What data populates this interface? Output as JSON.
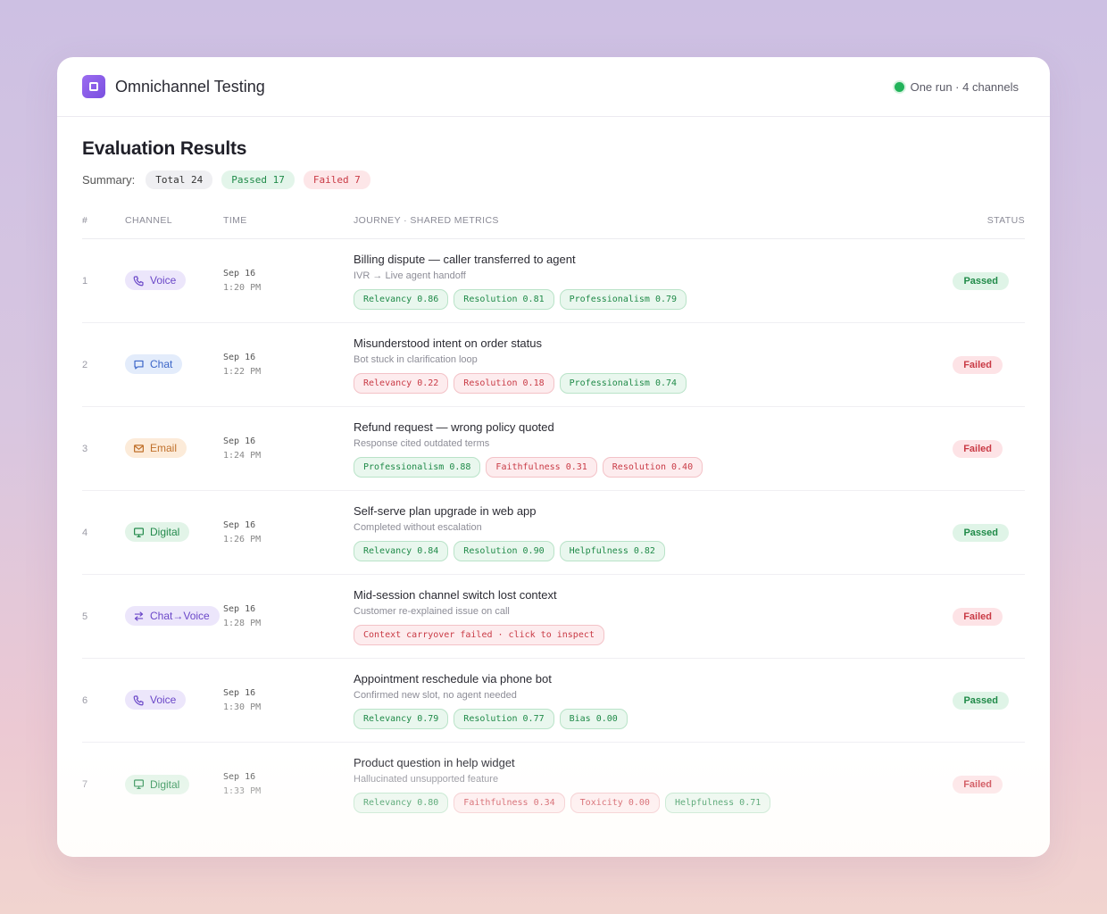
{
  "app": {
    "title": "Omnichannel Testing",
    "run_info": "One run · 4 channels"
  },
  "page": {
    "title": "Evaluation Results"
  },
  "summary": {
    "label": "Summary:",
    "total": "Total 24",
    "passed": "Passed 17",
    "failed": "Failed 7"
  },
  "columns": {
    "num": "#",
    "channel": "CHANNEL",
    "time": "TIME",
    "journey": "JOURNEY · SHARED METRICS",
    "status": "STATUS"
  },
  "colors": {
    "voice": {
      "bg": "#ece6fb",
      "fg": "#6b48c8"
    },
    "chat": {
      "bg": "#e3ecfb",
      "fg": "#3c66c8"
    },
    "email": {
      "bg": "#fcebd9",
      "fg": "#c0702a"
    },
    "digital": {
      "bg": "#e2f4e8",
      "fg": "#238a4c"
    },
    "switch": {
      "bg": "#ece6fb",
      "fg": "#6b48c8"
    }
  },
  "rows": [
    {
      "num": "1",
      "channel": "Voice",
      "channel_key": "voice",
      "icon": "phone-icon",
      "date": "Sep 16",
      "time": "1:20 PM",
      "title": "Billing dispute — caller transferred to agent",
      "subtitle": "IVR → Live agent handoff",
      "metrics": [
        {
          "label": "Relevancy 0.86",
          "ok": true
        },
        {
          "label": "Resolution 0.81",
          "ok": true
        },
        {
          "label": "Professionalism 0.79",
          "ok": true
        }
      ],
      "status": "Passed"
    },
    {
      "num": "2",
      "channel": "Chat",
      "channel_key": "chat",
      "icon": "chat-bubble-icon",
      "date": "Sep 16",
      "time": "1:22 PM",
      "title": "Misunderstood intent on order status",
      "subtitle": "Bot stuck in clarification loop",
      "metrics": [
        {
          "label": "Relevancy 0.22",
          "ok": false
        },
        {
          "label": "Resolution 0.18",
          "ok": false
        },
        {
          "label": "Professionalism 0.74",
          "ok": true
        }
      ],
      "status": "Failed"
    },
    {
      "num": "3",
      "channel": "Email",
      "channel_key": "email",
      "icon": "envelope-icon",
      "date": "Sep 16",
      "time": "1:24 PM",
      "title": "Refund request — wrong policy quoted",
      "subtitle": "Response cited outdated terms",
      "metrics": [
        {
          "label": "Professionalism 0.88",
          "ok": true
        },
        {
          "label": "Faithfulness 0.31",
          "ok": false
        },
        {
          "label": "Resolution 0.40",
          "ok": false
        }
      ],
      "status": "Failed"
    },
    {
      "num": "4",
      "channel": "Digital",
      "channel_key": "digital",
      "icon": "monitor-icon",
      "date": "Sep 16",
      "time": "1:26 PM",
      "title": "Self-serve plan upgrade in web app",
      "subtitle": "Completed without escalation",
      "metrics": [
        {
          "label": "Relevancy 0.84",
          "ok": true
        },
        {
          "label": "Resolution 0.90",
          "ok": true
        },
        {
          "label": "Helpfulness 0.82",
          "ok": true
        }
      ],
      "status": "Passed"
    },
    {
      "num": "5",
      "channel": "Chat→Voice",
      "channel_key": "switch",
      "icon": "switch-arrows-icon",
      "date": "Sep 16",
      "time": "1:28 PM",
      "title": "Mid-session channel switch lost context",
      "subtitle": "Customer re-explained issue on call",
      "metrics": [
        {
          "label": "Context carryover failed · click to inspect",
          "ok": false
        }
      ],
      "status": "Failed"
    },
    {
      "num": "6",
      "channel": "Voice",
      "channel_key": "voice",
      "icon": "phone-icon",
      "date": "Sep 16",
      "time": "1:30 PM",
      "title": "Appointment reschedule via phone bot",
      "subtitle": "Confirmed new slot, no agent needed",
      "metrics": [
        {
          "label": "Relevancy 0.79",
          "ok": true
        },
        {
          "label": "Resolution 0.77",
          "ok": true
        },
        {
          "label": "Bias 0.00",
          "ok": true
        }
      ],
      "status": "Passed"
    },
    {
      "num": "7",
      "channel": "Digital",
      "channel_key": "digital",
      "icon": "monitor-icon",
      "date": "Sep 16",
      "time": "1:33 PM",
      "title": "Product question in help widget",
      "subtitle": "Hallucinated unsupported feature",
      "metrics": [
        {
          "label": "Relevancy 0.80",
          "ok": true
        },
        {
          "label": "Faithfulness 0.34",
          "ok": false
        },
        {
          "label": "Toxicity 0.00",
          "ok": false
        },
        {
          "label": "Helpfulness 0.71",
          "ok": true
        }
      ],
      "status": "Failed"
    }
  ]
}
